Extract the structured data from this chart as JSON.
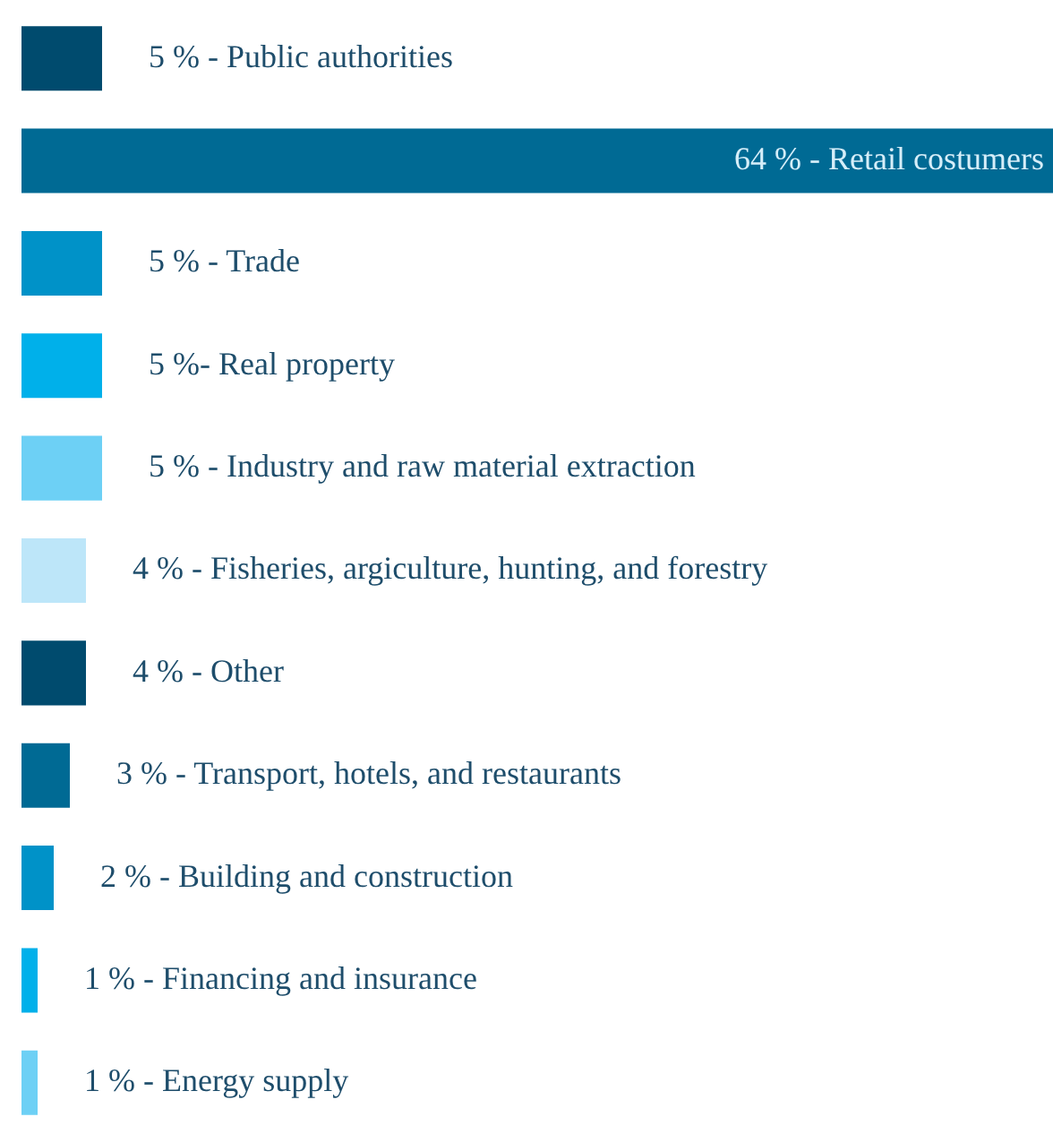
{
  "chart_data": {
    "type": "bar",
    "orientation": "horizontal",
    "categories": [
      null,
      null,
      null,
      null,
      null,
      null,
      null,
      null,
      null,
      null,
      null
    ],
    "values": [
      5,
      64,
      5,
      5,
      5,
      4,
      4,
      3,
      2,
      1,
      1
    ],
    "colors": [
      "#004b6e",
      "#006a94",
      "#0092c8",
      "#00b0ea",
      "#6dd0f5",
      "#bde6f9",
      "#004b6e",
      "#006a94",
      "#0092c8",
      "#00b0ea",
      "#6dd0f5"
    ],
    "value_labels": [
      "5 % - Public authorities",
      "64 % - Retail costumers",
      "5 % - Trade",
      "5 %- Real property",
      "5 % - Industry and raw material extraction",
      "4 % - Fisheries, argiculture, hunting, and forestry",
      "4 % - Other",
      "3 % - Transport, hotels, and restaurants",
      "2 % - Building and construction",
      "1 % - Financing and insurance",
      "1 % - Energy supply"
    ],
    "xlim": [
      0,
      64
    ],
    "legend": false
  }
}
